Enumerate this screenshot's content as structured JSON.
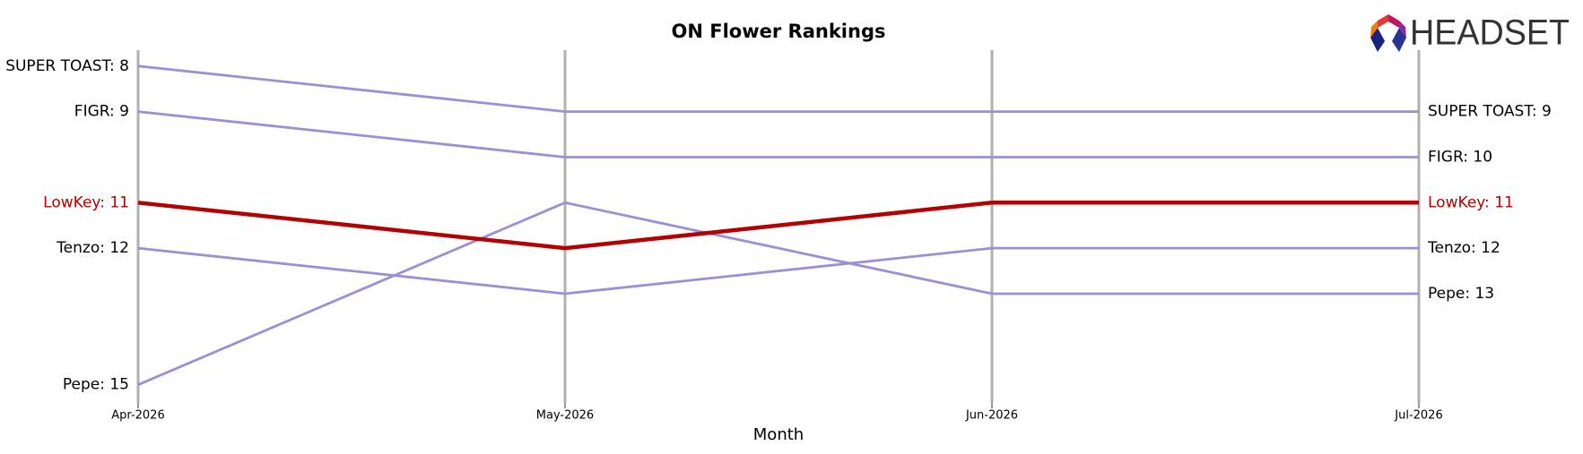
{
  "chart_data": {
    "type": "bump",
    "title": "ON Flower Rankings",
    "x_label": "Month",
    "logo_text": "HEADSET",
    "categories": [
      "Apr-2026",
      "May-2026",
      "Jun-2026",
      "Jul-2026"
    ],
    "ylim": [
      7.65,
      15.4
    ],
    "y_inverted": true,
    "highlight": "LowKey",
    "highlight_color": "#b30000",
    "series": [
      {
        "name": "SUPER TOAST",
        "color": "#9b8fd8",
        "values": [
          8,
          9,
          9,
          9
        ],
        "value_labels": [
          "SUPER TOAST: 8",
          null,
          null,
          "SUPER TOAST: 9"
        ]
      },
      {
        "name": "FIGR",
        "color": "#9b8fd8",
        "values": [
          9,
          10,
          10,
          10
        ],
        "value_labels": [
          "FIGR: 9",
          null,
          null,
          "FIGR: 10"
        ]
      },
      {
        "name": "LowKey",
        "color": "#b30000",
        "values": [
          11,
          12,
          11,
          11
        ],
        "value_labels": [
          "LowKey: 11",
          null,
          null,
          "LowKey: 11"
        ]
      },
      {
        "name": "Tenzo",
        "color": "#9b8fd8",
        "values": [
          12,
          13,
          12,
          12
        ],
        "value_labels": [
          "Tenzo: 12",
          null,
          null,
          "Tenzo: 12"
        ]
      },
      {
        "name": "Pepe",
        "color": "#9b8fd8",
        "values": [
          15,
          11,
          13,
          13
        ],
        "value_labels": [
          "Pepe: 15",
          null,
          null,
          "Pepe: 13"
        ]
      }
    ]
  }
}
